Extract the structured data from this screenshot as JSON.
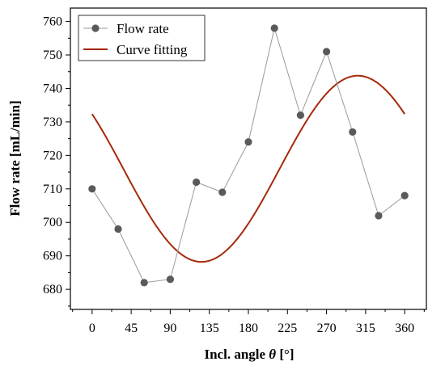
{
  "chart_data": {
    "type": "line",
    "xlabel_prefix": "Incl. angle ",
    "xlabel_symbol": "θ",
    "xlabel_suffix": " [°]",
    "ylabel": "Flow rate [mL/min]",
    "xlim": [
      -25,
      385
    ],
    "ylim": [
      674,
      764
    ],
    "xticks": [
      0,
      45,
      90,
      135,
      180,
      225,
      270,
      315,
      360
    ],
    "yticks": [
      680,
      690,
      700,
      710,
      720,
      730,
      740,
      750,
      760
    ],
    "legend_position": "top-left",
    "grid": false,
    "series": [
      {
        "name": "Flow rate",
        "style": "line-marker",
        "color": "#5a5a5a",
        "line_color": "#9a9a9a",
        "x": [
          0,
          30,
          60,
          90,
          120,
          150,
          180,
          210,
          240,
          270,
          300,
          330,
          360
        ],
        "y": [
          710,
          698,
          682,
          683,
          712,
          709,
          724,
          758,
          732,
          751,
          727,
          702,
          708
        ]
      },
      {
        "name": "Curve fitting",
        "style": "line",
        "color": "#a52a0a",
        "fit": {
          "offset": 716,
          "amplitude": 27.8,
          "phase_deg": -36
        }
      }
    ]
  }
}
